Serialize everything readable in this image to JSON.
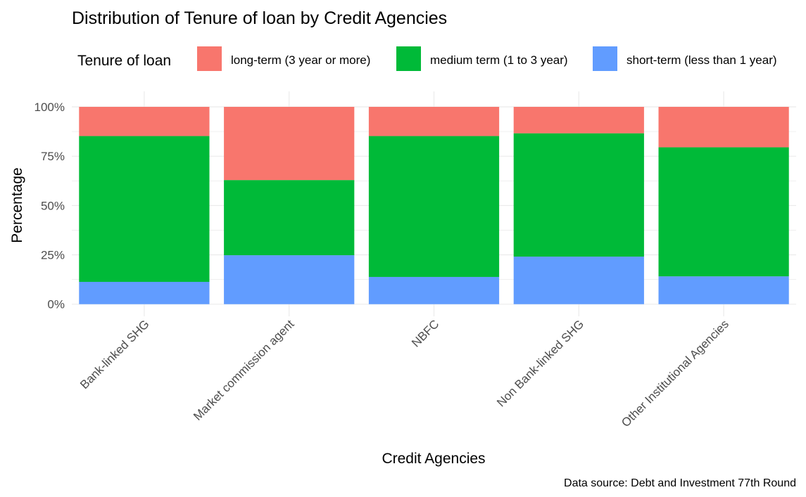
{
  "chart_data": {
    "type": "bar",
    "stacked": true,
    "title": "Distribution of Tenure of loan by Credit Agencies",
    "xlabel": "Credit Agencies",
    "ylabel": "Percentage",
    "ylim": [
      0,
      100
    ],
    "yticks": [
      "0%",
      "25%",
      "50%",
      "75%",
      "100%"
    ],
    "legend_title": "Tenure of loan",
    "legend_position": "top",
    "caption": "Data source: Debt and Investment 77th Round",
    "categories": [
      "Bank-linked SHG",
      "Market commission agent",
      "NBFC",
      "Non Bank-linked SHG",
      "Other Institutional Agencies"
    ],
    "series": [
      {
        "name": "long-term (3 year or more)",
        "color": "#F8766D",
        "values": [
          14.8,
          37.1,
          14.8,
          13.4,
          20.5
        ]
      },
      {
        "name": "medium term (1 to 3 year)",
        "color": "#00BA38",
        "values": [
          73.9,
          38.1,
          71.4,
          62.5,
          65.4
        ]
      },
      {
        "name": "short-term (less than 1 year)",
        "color": "#619CFF",
        "values": [
          11.3,
          24.8,
          13.8,
          24.1,
          14.1
        ]
      }
    ]
  }
}
